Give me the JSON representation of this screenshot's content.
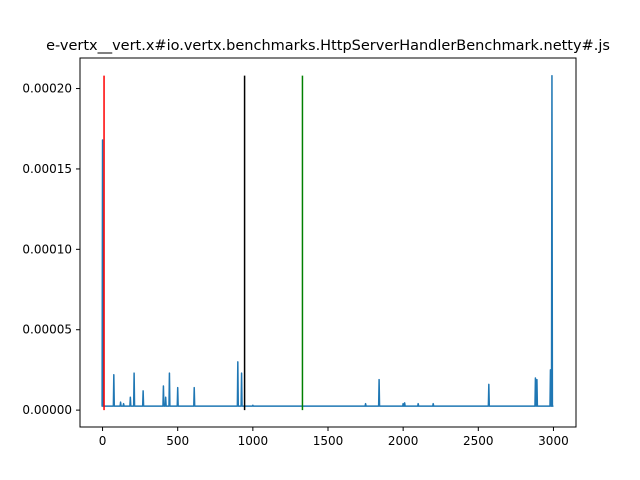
{
  "chart_data": {
    "type": "line",
    "title": "e-vertx__vert.x#io.vertx.benchmarks.HttpServerHandlerBenchmark.netty#.js",
    "xlabel": "",
    "ylabel": "",
    "xlim": [
      -150,
      3150
    ],
    "ylim": [
      -1.05e-05,
      0.000219
    ],
    "x_ticks": [
      0,
      500,
      1000,
      1500,
      2000,
      2500,
      3000
    ],
    "y_ticks": [
      0.0,
      5e-05,
      0.0001,
      0.00015,
      0.0002
    ],
    "x_tick_labels": [
      "0",
      "500",
      "1000",
      "1500",
      "2000",
      "2500",
      "3000"
    ],
    "y_tick_labels": [
      "0.00000",
      "0.00005",
      "0.00010",
      "0.00015",
      "0.00020"
    ],
    "grid": false,
    "baseline": 2.5e-06,
    "series_color": "#1f77b4",
    "spikes": [
      [
        0,
        0.000168
      ],
      [
        75,
        2.2e-05
      ],
      [
        120,
        5e-06
      ],
      [
        140,
        4e-06
      ],
      [
        185,
        8e-06
      ],
      [
        210,
        2.3e-05
      ],
      [
        270,
        1.2e-05
      ],
      [
        405,
        1.5e-05
      ],
      [
        420,
        8e-06
      ],
      [
        445,
        2.3e-05
      ],
      [
        500,
        1.4e-05
      ],
      [
        610,
        1.4e-05
      ],
      [
        900,
        3e-05
      ],
      [
        925,
        2.3e-05
      ],
      [
        1000,
        3e-06
      ],
      [
        1750,
        4e-06
      ],
      [
        1840,
        1.9e-05
      ],
      [
        2000,
        4e-06
      ],
      [
        2010,
        4.5e-06
      ],
      [
        2100,
        4e-06
      ],
      [
        2200,
        4e-06
      ],
      [
        2570,
        1.6e-05
      ],
      [
        2880,
        2e-05
      ],
      [
        2890,
        1.9e-05
      ],
      [
        2980,
        2.5e-05
      ],
      [
        2990,
        0.000208
      ]
    ],
    "vertical_lines": [
      {
        "x": 10,
        "color": "#ff0000"
      },
      {
        "x": 945,
        "color": "#000000"
      },
      {
        "x": 1330,
        "color": "#008000"
      }
    ],
    "vertical_line_range": [
      0.0,
      0.000208
    ]
  }
}
